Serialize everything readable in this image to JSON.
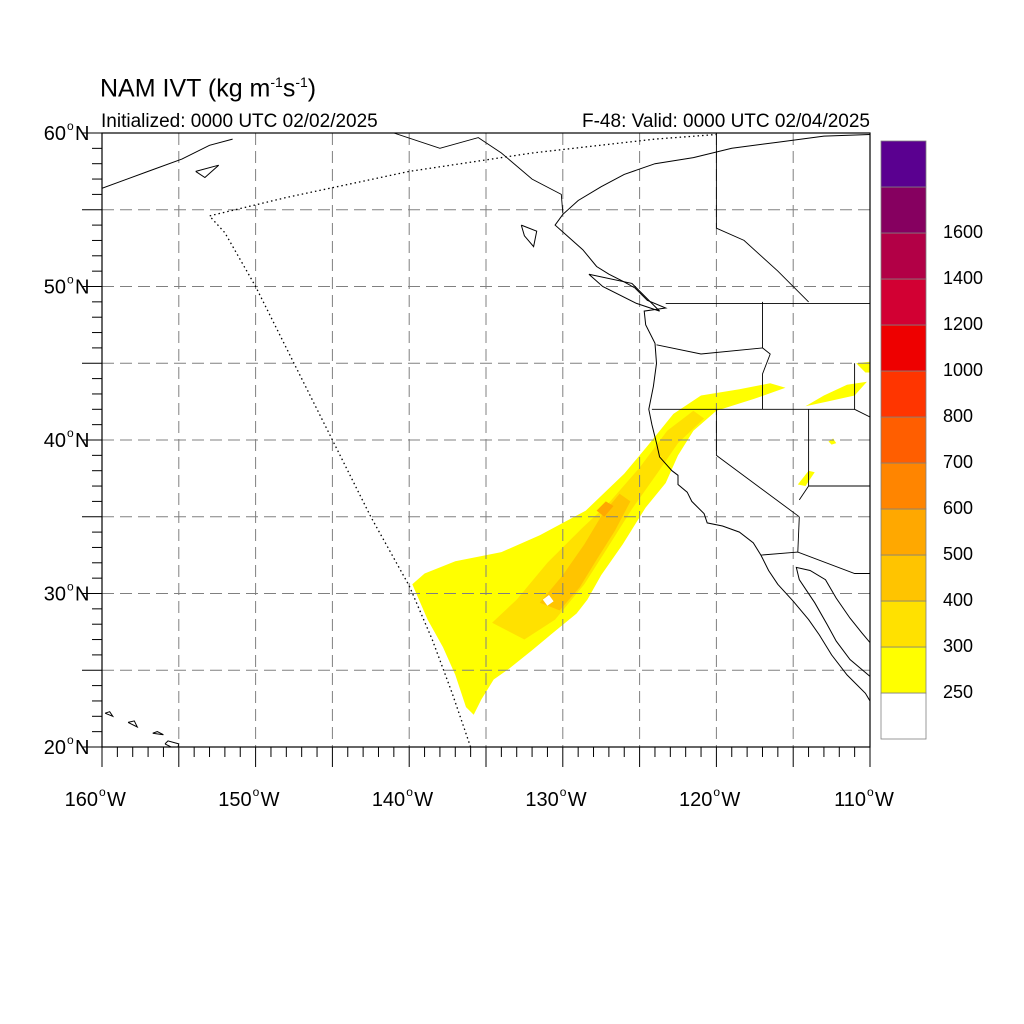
{
  "map": {
    "title_main": "NAM IVT (kg m",
    "title_sup1": "-1",
    "title_mid": "s",
    "title_sup2": "-1",
    "title_end": ")",
    "initialized": "Initialized: 0000 UTC 02/02/2025",
    "valid": "F-48: Valid: 0000 UTC 02/04/2025",
    "extent": {
      "lon_min": -160,
      "lon_max": -110,
      "lat_min": 20,
      "lat_max": 60
    },
    "lat_labels": [
      {
        "lat": 60,
        "text": "60",
        "suffix": "N"
      },
      {
        "lat": 50,
        "text": "50",
        "suffix": "N"
      },
      {
        "lat": 40,
        "text": "40",
        "suffix": "N"
      },
      {
        "lat": 30,
        "text": "30",
        "suffix": "N"
      },
      {
        "lat": 20,
        "text": "20",
        "suffix": "N"
      }
    ],
    "lon_labels": [
      {
        "lon": -160,
        "text": "160",
        "suffix": "W"
      },
      {
        "lon": -150,
        "text": "150",
        "suffix": "W"
      },
      {
        "lon": -140,
        "text": "140",
        "suffix": "W"
      },
      {
        "lon": -130,
        "text": "130",
        "suffix": "W"
      },
      {
        "lon": -120,
        "text": "120",
        "suffix": "W"
      },
      {
        "lon": -110,
        "text": "110",
        "suffix": "W"
      }
    ],
    "grid_lats": [
      25,
      30,
      35,
      40,
      45,
      50,
      55
    ],
    "grid_lons": [
      -155,
      -150,
      -145,
      -140,
      -135,
      -130,
      -125,
      -120,
      -115
    ],
    "gridline_color": "#808080",
    "coastline_color": "#000000"
  },
  "colorbar": {
    "levels": [
      {
        "value": 250,
        "label": "250",
        "color": "#ffffff"
      },
      {
        "value": 300,
        "label": "300",
        "color": "#ffff00"
      },
      {
        "value": 400,
        "label": "400",
        "color": "#ffe100"
      },
      {
        "value": 500,
        "label": "500",
        "color": "#ffc400"
      },
      {
        "value": 600,
        "label": "600",
        "color": "#ffa800"
      },
      {
        "value": 700,
        "label": "700",
        "color": "#ff8500"
      },
      {
        "value": 800,
        "label": "800",
        "color": "#ff5e00"
      },
      {
        "value": 1000,
        "label": "1000",
        "color": "#ff3500"
      },
      {
        "value": 1200,
        "label": "1200",
        "color": "#ee0000"
      },
      {
        "value": 1400,
        "label": "1400",
        "color": "#d20033"
      },
      {
        "value": 1600,
        "label": "1600",
        "color": "#b20046"
      },
      {
        "value": null,
        "label": "",
        "color": "#860060"
      },
      {
        "value": null,
        "label": "",
        "color": "#5a0090"
      }
    ]
  },
  "ivt": {
    "main_plume_outline": [
      [
        -139.8,
        30.6
      ],
      [
        -139.0,
        31.3
      ],
      [
        -137.0,
        32.1
      ],
      [
        -134.0,
        32.7
      ],
      [
        -131.5,
        33.8
      ],
      [
        -128.5,
        35.4
      ],
      [
        -126.0,
        37.8
      ],
      [
        -124.5,
        39.6
      ],
      [
        -122.8,
        41.7
      ],
      [
        -121.0,
        42.9
      ],
      [
        -118.5,
        43.3
      ],
      [
        -116.5,
        43.7
      ],
      [
        -115.5,
        43.4
      ],
      [
        -117.5,
        42.7
      ],
      [
        -120.0,
        41.9
      ],
      [
        -121.5,
        40.6
      ],
      [
        -122.5,
        39.0
      ],
      [
        -123.3,
        37.2
      ],
      [
        -124.6,
        35.6
      ],
      [
        -126.1,
        33.2
      ],
      [
        -127.5,
        31.2
      ],
      [
        -128.4,
        29.6
      ],
      [
        -129.1,
        28.7
      ],
      [
        -130.8,
        27.3
      ],
      [
        -132.0,
        26.3
      ],
      [
        -133.5,
        25.1
      ],
      [
        -134.5,
        24.4
      ],
      [
        -135.3,
        23.1
      ],
      [
        -135.8,
        22.1
      ],
      [
        -136.3,
        22.6
      ],
      [
        -137.0,
        24.7
      ],
      [
        -137.8,
        26.5
      ],
      [
        -138.8,
        28.3
      ],
      [
        -139.8,
        30.6
      ]
    ],
    "band_400_outline": [
      [
        -134.6,
        28.1
      ],
      [
        -133.0,
        29.6
      ],
      [
        -131.0,
        32.0
      ],
      [
        -128.8,
        34.2
      ],
      [
        -127.0,
        35.9
      ],
      [
        -125.0,
        38.2
      ],
      [
        -123.2,
        40.6
      ],
      [
        -121.5,
        41.9
      ],
      [
        -120.8,
        41.4
      ],
      [
        -122.5,
        39.8
      ],
      [
        -123.8,
        37.9
      ],
      [
        -125.5,
        35.5
      ],
      [
        -127.2,
        32.8
      ],
      [
        -128.6,
        30.6
      ],
      [
        -130.5,
        28.3
      ],
      [
        -132.5,
        27.0
      ],
      [
        -134.6,
        28.1
      ]
    ],
    "band_500_outline": [
      [
        -131.5,
        29.4
      ],
      [
        -130.0,
        31.2
      ],
      [
        -128.6,
        33.2
      ],
      [
        -127.4,
        35.2
      ],
      [
        -126.3,
        36.5
      ],
      [
        -125.6,
        36.0
      ],
      [
        -126.6,
        34.1
      ],
      [
        -127.8,
        32.2
      ],
      [
        -128.9,
        30.4
      ],
      [
        -130.2,
        28.9
      ],
      [
        -131.5,
        29.4
      ]
    ],
    "band_600_outline": [
      [
        -127.8,
        35.4
      ],
      [
        -127.2,
        36.0
      ],
      [
        -126.7,
        35.7
      ],
      [
        -127.3,
        35.0
      ],
      [
        -127.8,
        35.4
      ]
    ],
    "hole_outline": [
      [
        -131.3,
        29.6
      ],
      [
        -130.9,
        29.9
      ],
      [
        -130.6,
        29.5
      ],
      [
        -131.0,
        29.2
      ],
      [
        -131.3,
        29.6
      ]
    ],
    "small_patches": [
      [
        [
          -114.2,
          42.2
        ],
        [
          -113.0,
          42.9
        ],
        [
          -111.5,
          43.6
        ],
        [
          -110.2,
          43.8
        ],
        [
          -111.0,
          42.9
        ],
        [
          -112.8,
          42.5
        ],
        [
          -114.2,
          42.2
        ]
      ],
      [
        [
          -110.3,
          44.4
        ],
        [
          -110.0,
          44.4
        ],
        [
          -110.0,
          45.1
        ],
        [
          -110.9,
          45.0
        ],
        [
          -110.3,
          44.4
        ]
      ],
      [
        [
          -114.7,
          37.1
        ],
        [
          -114.0,
          38.0
        ],
        [
          -113.6,
          37.9
        ],
        [
          -114.2,
          37.0
        ],
        [
          -114.7,
          37.1
        ]
      ],
      [
        [
          -112.7,
          39.9
        ],
        [
          -112.4,
          40.1
        ],
        [
          -112.2,
          39.8
        ],
        [
          -112.5,
          39.7
        ],
        [
          -112.7,
          39.9
        ]
      ]
    ]
  },
  "lines": {
    "model_domain_outline": [
      [
        -136.0,
        20.0
      ],
      [
        -137.2,
        23.5
      ],
      [
        -138.5,
        27.0
      ],
      [
        -140.0,
        30.5
      ],
      [
        -142.5,
        35.0
      ],
      [
        -145.0,
        40.0
      ],
      [
        -147.5,
        45.0
      ],
      [
        -150.0,
        50.0
      ],
      [
        -152.0,
        53.5
      ],
      [
        -153.0,
        54.6
      ],
      [
        -148.0,
        55.8
      ],
      [
        -140.0,
        57.5
      ],
      [
        -132.0,
        58.7
      ],
      [
        -124.0,
        59.6
      ],
      [
        -120.0,
        59.9
      ]
    ],
    "coastline": [
      [
        -110.0,
        59.9
      ],
      [
        -113.0,
        59.8
      ],
      [
        -116.0,
        59.4
      ],
      [
        -119.0,
        59.0
      ],
      [
        -121.5,
        58.4
      ],
      [
        -124.0,
        58.0
      ],
      [
        -126.0,
        57.3
      ],
      [
        -127.5,
        56.5
      ],
      [
        -129.0,
        55.6
      ],
      [
        -130.0,
        54.7
      ],
      [
        -130.5,
        54.0
      ],
      [
        -129.6,
        53.2
      ],
      [
        -128.7,
        52.4
      ],
      [
        -127.8,
        51.3
      ],
      [
        -127.0,
        50.8
      ],
      [
        -126.0,
        50.3
      ],
      [
        -125.3,
        49.9
      ],
      [
        -124.5,
        49.1
      ],
      [
        -123.3,
        48.6
      ],
      [
        -124.7,
        48.4
      ],
      [
        -124.6,
        47.5
      ],
      [
        -124.0,
        46.3
      ],
      [
        -123.9,
        45.0
      ],
      [
        -124.1,
        43.5
      ],
      [
        -124.4,
        42.0
      ],
      [
        -124.2,
        41.0
      ],
      [
        -123.9,
        39.8
      ],
      [
        -123.7,
        38.9
      ],
      [
        -122.9,
        38.0
      ],
      [
        -122.5,
        37.7
      ],
      [
        -122.5,
        37.1
      ],
      [
        -121.9,
        36.6
      ],
      [
        -121.6,
        36.0
      ],
      [
        -120.8,
        35.2
      ],
      [
        -120.6,
        34.6
      ],
      [
        -119.6,
        34.4
      ],
      [
        -118.5,
        34.0
      ],
      [
        -117.6,
        33.3
      ],
      [
        -117.1,
        32.5
      ],
      [
        -116.6,
        31.5
      ],
      [
        -116.0,
        30.6
      ],
      [
        -115.0,
        29.5
      ],
      [
        -114.0,
        28.3
      ],
      [
        -113.3,
        27.3
      ],
      [
        -112.5,
        26.0
      ],
      [
        -111.5,
        24.7
      ],
      [
        -110.3,
        23.5
      ],
      [
        -110.0,
        23.0
      ]
    ],
    "gulf_coast": [
      [
        -110.0,
        24.6
      ],
      [
        -111.3,
        25.7
      ],
      [
        -112.2,
        26.9
      ],
      [
        -112.8,
        28.0
      ],
      [
        -113.6,
        29.4
      ],
      [
        -114.6,
        30.9
      ],
      [
        -114.8,
        31.7
      ],
      [
        -113.9,
        31.5
      ],
      [
        -112.9,
        30.9
      ],
      [
        -112.2,
        29.7
      ],
      [
        -111.3,
        28.4
      ],
      [
        -110.5,
        27.4
      ],
      [
        -110.0,
        26.8
      ]
    ],
    "islands": [
      [
        [
          -155.9,
          20.2
        ],
        [
          -155.1,
          19.8
        ],
        [
          -155.0,
          20.2
        ],
        [
          -155.7,
          20.4
        ],
        [
          -155.9,
          20.2
        ]
      ],
      [
        [
          -156.7,
          20.9
        ],
        [
          -156.0,
          20.8
        ],
        [
          -156.4,
          21.0
        ],
        [
          -156.7,
          20.9
        ]
      ],
      [
        [
          -158.3,
          21.6
        ],
        [
          -157.7,
          21.3
        ],
        [
          -157.9,
          21.7
        ],
        [
          -158.3,
          21.6
        ]
      ],
      [
        [
          -159.8,
          22.2
        ],
        [
          -159.3,
          22.0
        ],
        [
          -159.5,
          22.3
        ],
        [
          -159.8,
          22.2
        ]
      ],
      [
        [
          -132.7,
          54.0
        ],
        [
          -131.7,
          53.6
        ],
        [
          -131.9,
          52.6
        ],
        [
          -132.5,
          53.3
        ],
        [
          -132.7,
          54.0
        ]
      ],
      [
        [
          -160.0,
          56.4
        ],
        [
          -157.0,
          57.5
        ],
        [
          -154.8,
          58.3
        ],
        [
          -153.0,
          59.2
        ],
        [
          -151.5,
          59.6
        ]
      ],
      [
        [
          -153.9,
          57.5
        ],
        [
          -152.4,
          57.9
        ],
        [
          -153.3,
          57.1
        ],
        [
          -153.9,
          57.5
        ]
      ],
      [
        [
          -128.3,
          50.8
        ],
        [
          -125.5,
          50.2
        ],
        [
          -123.7,
          48.4
        ],
        [
          -125.2,
          48.9
        ],
        [
          -127.4,
          50.0
        ],
        [
          -128.3,
          50.8
        ]
      ]
    ],
    "borders": [
      [
        [
          -123.3,
          48.9
        ],
        [
          -116.0,
          48.9
        ],
        [
          -110.0,
          48.9
        ]
      ],
      [
        [
          -141.0,
          60.0
        ],
        [
          -138.0,
          59.0
        ],
        [
          -135.5,
          59.7
        ],
        [
          -134.0,
          58.7
        ],
        [
          -132.0,
          57.0
        ],
        [
          -130.1,
          56.0
        ],
        [
          -130.0,
          54.8
        ]
      ],
      [
        [
          -120.0,
          60.0
        ],
        [
          -120.0,
          53.8
        ],
        [
          -118.2,
          53.0
        ],
        [
          -116.0,
          51.0
        ],
        [
          -114.0,
          49.0
        ]
      ],
      [
        [
          -124.2,
          42.0
        ],
        [
          -120.0,
          42.0
        ],
        [
          -117.0,
          42.0
        ],
        [
          -111.0,
          42.0
        ]
      ],
      [
        [
          -120.0,
          42.0
        ],
        [
          -120.0,
          39.0
        ],
        [
          -114.6,
          35.0
        ]
      ],
      [
        [
          -117.0,
          42.0
        ],
        [
          -117.0,
          44.3
        ],
        [
          -116.5,
          45.6
        ],
        [
          -117.0,
          46.0
        ],
        [
          -117.0,
          49.0
        ]
      ],
      [
        [
          -123.9,
          46.2
        ],
        [
          -121.0,
          45.6
        ],
        [
          -117.0,
          46.0
        ]
      ],
      [
        [
          -114.0,
          42.0
        ],
        [
          -114.0,
          37.0
        ],
        [
          -114.6,
          36.1
        ]
      ],
      [
        [
          -111.0,
          45.0
        ],
        [
          -111.0,
          42.0
        ],
        [
          -109.0,
          41.0
        ]
      ],
      [
        [
          -114.0,
          37.0
        ],
        [
          -110.0,
          37.0
        ]
      ],
      [
        [
          -117.1,
          32.5
        ],
        [
          -114.7,
          32.7
        ],
        [
          -111.0,
          31.3
        ],
        [
          -110.0,
          31.3
        ]
      ],
      [
        [
          -114.7,
          32.7
        ],
        [
          -114.6,
          35.0
        ]
      ]
    ]
  }
}
